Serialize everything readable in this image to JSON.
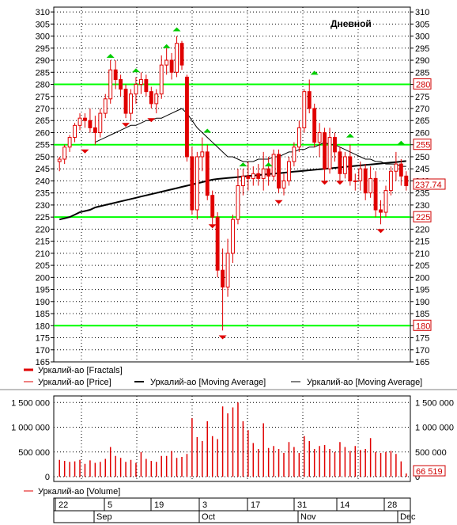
{
  "chart_data": {
    "type": "candlestick",
    "title": "Дневной",
    "price_axis": {
      "ylim": [
        165,
        312
      ],
      "ticks": [
        310,
        305,
        300,
        295,
        290,
        285,
        280,
        275,
        270,
        265,
        260,
        255,
        250,
        245,
        240,
        235,
        230,
        225,
        220,
        215,
        210,
        205,
        200,
        195,
        190,
        185,
        180,
        175,
        170,
        165
      ]
    },
    "volume_axis": {
      "ylim": [
        0,
        1600000
      ],
      "ticks": [
        0,
        500000,
        1000000,
        1500000
      ],
      "tick_labels": [
        "0",
        "500 000",
        "1 000 000",
        "1 500 000"
      ]
    },
    "horizontal_levels": [
      280,
      255,
      225,
      180
    ],
    "last_price": "237.74",
    "last_volume": "66 519",
    "colors": {
      "level": "#00ff00",
      "up_fractal": "#00cc00",
      "down_fractal": "#e00000",
      "candle": "#e00000",
      "bg": "#ffffff",
      "grid": "#000000"
    },
    "legend_price": [
      {
        "name": "Уркалий-ао [Fractals]"
      },
      {
        "name": "Уркалий-ао [Price]"
      },
      {
        "name": "Уркалий-ао [Moving Average]"
      },
      {
        "name": "Уркалий-ао [Moving Average]"
      }
    ],
    "legend_volume": "Уркалий-ао [Volume]",
    "day_labels": [
      "22",
      "5",
      "19",
      "3",
      "17",
      "31",
      "14",
      "28"
    ],
    "month_labels": [
      "Sep",
      "Oct",
      "Nov",
      "Dec"
    ],
    "candles": [
      [
        248,
        250,
        244,
        249
      ],
      [
        249,
        255,
        247,
        254
      ],
      [
        254,
        259,
        252,
        258
      ],
      [
        258,
        264,
        256,
        263
      ],
      [
        263,
        268,
        261,
        266
      ],
      [
        266,
        268,
        262,
        265
      ],
      [
        265,
        270,
        260,
        262
      ],
      [
        262,
        267,
        255,
        260
      ],
      [
        260,
        270,
        258,
        268
      ],
      [
        268,
        276,
        266,
        274
      ],
      [
        274,
        290,
        272,
        286
      ],
      [
        286,
        290,
        278,
        282
      ],
      [
        282,
        284,
        275,
        278
      ],
      [
        278,
        280,
        266,
        268
      ],
      [
        268,
        278,
        265,
        276
      ],
      [
        276,
        283,
        272,
        280
      ],
      [
        280,
        285,
        276,
        282
      ],
      [
        282,
        284,
        275,
        277
      ],
      [
        277,
        279,
        270,
        272
      ],
      [
        272,
        278,
        268,
        276
      ],
      [
        276,
        292,
        274,
        288
      ],
      [
        288,
        295,
        284,
        290
      ],
      [
        290,
        293,
        282,
        285
      ],
      [
        285,
        300,
        283,
        297
      ],
      [
        297,
        298,
        286,
        288
      ],
      [
        283,
        284,
        248,
        250
      ],
      [
        250,
        254,
        226,
        228
      ],
      [
        228,
        252,
        224,
        250
      ],
      [
        250,
        258,
        244,
        252
      ],
      [
        252,
        255,
        232,
        234
      ],
      [
        234,
        236,
        222,
        225
      ],
      [
        225,
        227,
        200,
        203
      ],
      [
        203,
        212,
        178,
        196
      ],
      [
        196,
        216,
        192,
        210
      ],
      [
        210,
        226,
        206,
        224
      ],
      [
        224,
        245,
        222,
        238
      ],
      [
        238,
        245,
        234,
        242
      ],
      [
        242,
        248,
        236,
        241
      ],
      [
        241,
        246,
        238,
        243
      ],
      [
        243,
        247,
        238,
        241
      ],
      [
        241,
        252,
        236,
        245
      ],
      [
        245,
        250,
        238,
        242
      ],
      [
        242,
        253,
        240,
        251
      ],
      [
        251,
        253,
        235,
        237
      ],
      [
        237,
        243,
        234,
        240
      ],
      [
        240,
        250,
        238,
        248
      ],
      [
        248,
        256,
        246,
        254
      ],
      [
        254,
        265,
        252,
        262
      ],
      [
        262,
        278,
        260,
        277
      ],
      [
        277,
        282,
        268,
        270
      ],
      [
        270,
        272,
        254,
        256
      ],
      [
        256,
        264,
        250,
        260
      ],
      [
        260,
        262,
        240,
        245
      ],
      [
        245,
        262,
        243,
        258
      ],
      [
        258,
        260,
        248,
        252
      ],
      [
        252,
        254,
        240,
        243
      ],
      [
        243,
        252,
        241,
        250
      ],
      [
        250,
        255,
        238,
        240
      ],
      [
        240,
        243,
        236,
        240
      ],
      [
        240,
        248,
        236,
        245
      ],
      [
        245,
        247,
        232,
        235
      ],
      [
        235,
        246,
        233,
        241
      ],
      [
        241,
        244,
        225,
        228
      ],
      [
        228,
        232,
        222,
        227
      ],
      [
        227,
        238,
        225,
        236
      ],
      [
        236,
        246,
        234,
        244
      ],
      [
        244,
        252,
        240,
        247
      ],
      [
        247,
        249,
        238,
        242
      ],
      [
        242,
        244,
        236,
        238
      ]
    ],
    "volumes": [
      340000,
      320000,
      300000,
      310000,
      340000,
      260000,
      330000,
      280000,
      300000,
      360000,
      600000,
      420000,
      380000,
      300000,
      340000,
      280000,
      500000,
      360000,
      320000,
      300000,
      420000,
      420000,
      520000,
      380000,
      400000,
      460000,
      1180000,
      800000,
      720000,
      1120000,
      820000,
      760000,
      1420000,
      1280000,
      1400000,
      1500000,
      1120000,
      940000,
      680000,
      560000,
      1080000,
      580000,
      620000,
      560000,
      480000,
      700000,
      600000,
      480000,
      820000,
      720000,
      560000,
      620000,
      640000,
      560000,
      500000,
      700000,
      600000,
      520000,
      620000,
      540000,
      560000,
      780000,
      500000,
      480000,
      500000,
      520000,
      460000,
      310000,
      66519
    ],
    "ma_fast": [
      null,
      null,
      null,
      null,
      null,
      null,
      null,
      256,
      257,
      258,
      259,
      260,
      261,
      262,
      263,
      263,
      264,
      265,
      265,
      266,
      266,
      267,
      268,
      269,
      270,
      268,
      265,
      262,
      260,
      258,
      256,
      254,
      252,
      250,
      250,
      249,
      248,
      248,
      248,
      249,
      249,
      249,
      250,
      250,
      251,
      252,
      252,
      253,
      253,
      254,
      254,
      255,
      256,
      255,
      255,
      254,
      253,
      252,
      251,
      250,
      249,
      249,
      248,
      248,
      247,
      247,
      247,
      246,
      246
    ],
    "ma_slow": [
      224,
      224.5,
      225,
      226,
      227,
      227.5,
      228,
      229,
      229.5,
      230,
      230.5,
      231,
      231.5,
      232,
      232.5,
      233,
      233.5,
      234,
      234.5,
      235,
      235.5,
      236,
      236.5,
      237,
      237.5,
      238,
      238.5,
      239,
      239.5,
      240,
      240.5,
      240.8,
      241,
      241.2,
      241.4,
      241.6,
      241.8,
      242,
      242.2,
      242.4,
      242.6,
      242.8,
      243,
      243.2,
      243.4,
      243.6,
      243.8,
      244,
      244.2,
      244.4,
      244.6,
      244.8,
      245,
      245.2,
      245.4,
      245.6,
      245.8,
      246,
      246.2,
      246.4,
      246.6,
      246.8,
      247,
      247.2,
      247.4,
      247.6,
      247.8,
      248,
      248.2
    ],
    "up_fractals": [
      [
        10,
        291
      ],
      [
        15,
        285
      ],
      [
        23,
        302
      ],
      [
        21,
        295
      ],
      [
        36,
        246
      ],
      [
        41,
        246
      ],
      [
        50,
        284
      ],
      [
        57,
        258
      ],
      [
        67,
        255
      ],
      [
        29,
        260
      ]
    ],
    "down_fractals": [
      [
        5,
        253
      ],
      [
        13,
        264
      ],
      [
        18,
        266
      ],
      [
        30,
        222
      ],
      [
        32,
        176
      ],
      [
        43,
        232
      ],
      [
        52,
        240
      ],
      [
        55,
        240
      ],
      [
        63,
        220
      ]
    ]
  }
}
